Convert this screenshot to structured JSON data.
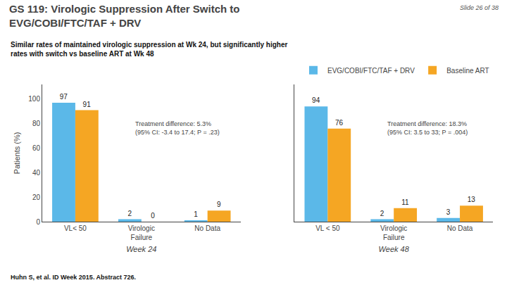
{
  "title": "GS 119: Virologic Suppression After Switch to\nEVG/COBI/FTC/TAF + DRV",
  "subtitle": "Similar rates of maintained virologic suppression at Wk 24, but significantly higher\nrates with switch vs baseline ART at Wk 48",
  "annotations": [
    "Slide 26 of 38",
    "Huhn S, et al. ID Week 2015. Abstract 726."
  ],
  "chart_data": [
    {
      "type": "bar",
      "categories": [
        "VL< 50",
        "Virologic\nFailure",
        "No Data"
      ],
      "series": [
        {
          "name": "EVG/COBI/FTC/TAF + DRV",
          "color": "#5BB8E8",
          "values": [
            97,
            2,
            1
          ]
        },
        {
          "name": "Baseline ART",
          "color": "#F5A623",
          "values": [
            91,
            0,
            9
          ]
        }
      ],
      "xlabel": "Week 24",
      "ylabel": "Patients (%)",
      "ylim": [
        0,
        112
      ],
      "yticks": [
        0,
        20,
        40,
        60,
        80,
        100
      ],
      "annotation": "Treatment difference: 5.3%\n(95% CI: -3.4 to 17.4; P = .23)",
      "data_labels": true,
      "grid": false,
      "legend": "upper right"
    },
    {
      "type": "bar",
      "categories": [
        "VL < 50",
        "Virologic\nFailure",
        "No Data"
      ],
      "series": [
        {
          "name": "EVG/COBI/FTC/TAF + DRV",
          "color": "#5BB8E8",
          "values": [
            94,
            2,
            3
          ]
        },
        {
          "name": "Baseline ART",
          "color": "#F5A623",
          "values": [
            76,
            11,
            13
          ]
        }
      ],
      "xlabel": "Week 48",
      "ylim": [
        0,
        112
      ],
      "yticks": [
        0,
        20,
        40,
        60,
        80,
        100
      ],
      "annotation": "Treatment difference: 18.3%\n(95% CI: 3.5 to 33; P = .004)",
      "data_labels": true,
      "grid": false,
      "tick_labels": "x"
    }
  ]
}
